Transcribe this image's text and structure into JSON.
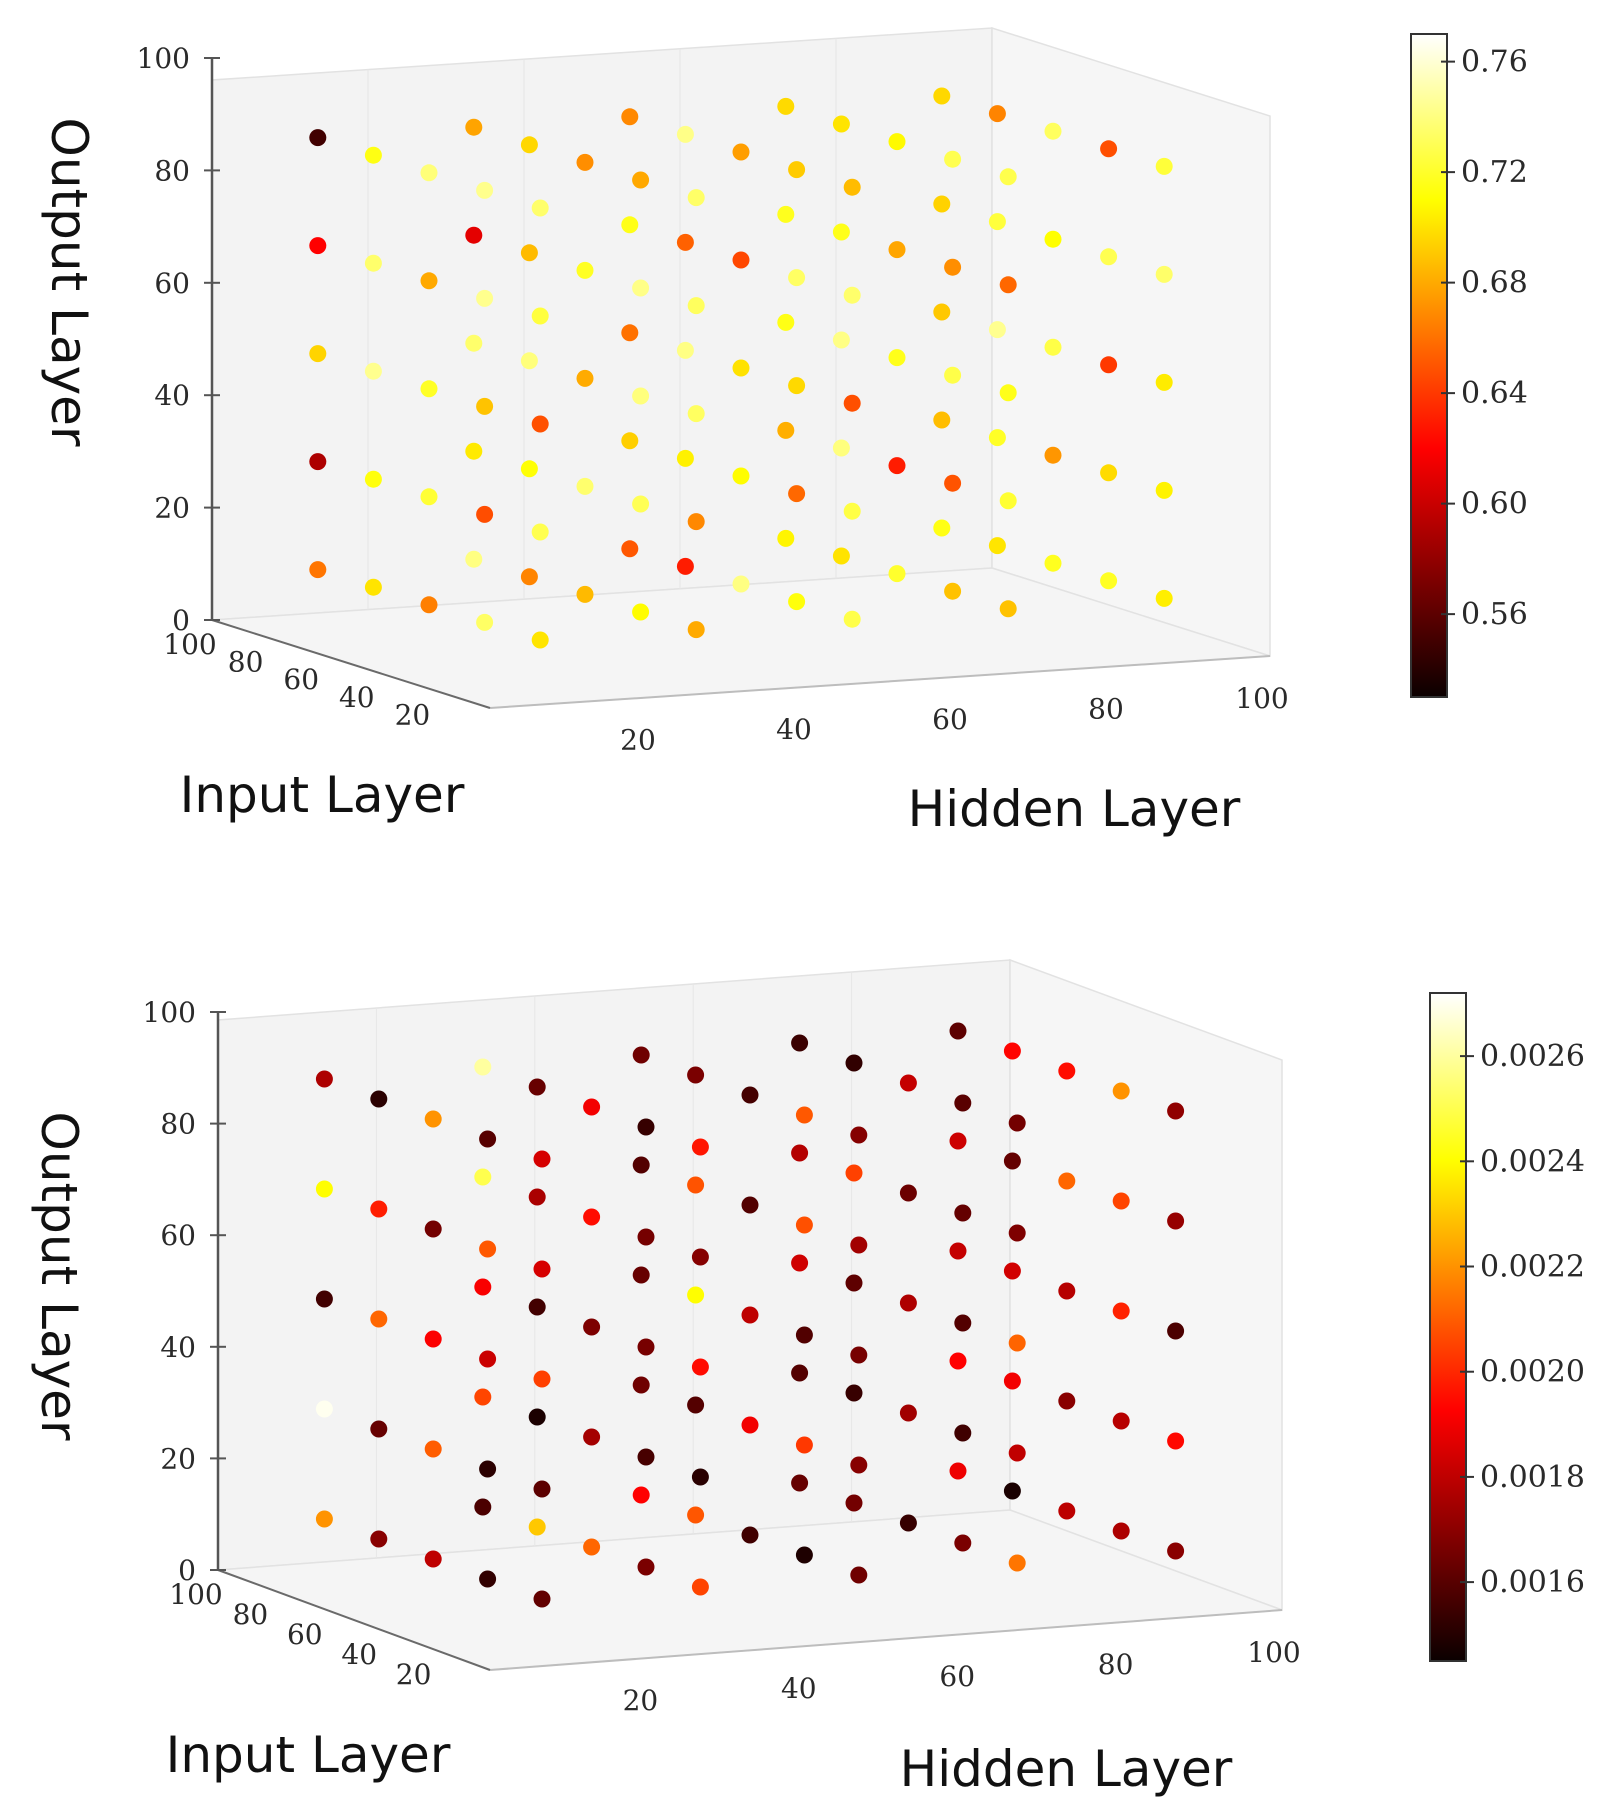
{
  "chart_data": [
    {
      "type": "scatter3d",
      "xlabel": "Hidden Layer",
      "ylabel": "Input Layer",
      "zlabel": "Output Layer",
      "xlim": [
        0,
        100
      ],
      "ylim": [
        0,
        100
      ],
      "zlim": [
        0,
        100
      ],
      "xticks": [
        20,
        40,
        60,
        80,
        100
      ],
      "yticks": [
        20,
        40,
        60,
        80,
        100
      ],
      "zticks": [
        0,
        20,
        40,
        60,
        80,
        100
      ],
      "grid_values": [
        10,
        30,
        50,
        70,
        90
      ],
      "colorbar": {
        "colormap": "hot",
        "min": 0.53,
        "max": 0.77,
        "ticks": [
          "0.56",
          "0.60",
          "0.64",
          "0.68",
          "0.72",
          "0.76"
        ]
      },
      "points": [
        {
          "x": 10,
          "y": 90,
          "z": 90,
          "v": 0.55
        },
        {
          "x": 10,
          "y": 90,
          "z": 70,
          "v": 0.62
        },
        {
          "x": 30,
          "y": 90,
          "z": 70,
          "v": 0.61
        },
        {
          "x": 10,
          "y": 90,
          "z": 30,
          "v": 0.59
        },
        {
          "x": 50,
          "y": 70,
          "z": 10,
          "v": 0.63
        },
        {
          "x": 90,
          "y": 30,
          "z": 50,
          "v": 0.64
        },
        {
          "x": 70,
          "y": 50,
          "z": 30,
          "v": 0.63
        },
        {
          "x": 70,
          "y": 30,
          "z": 70,
          "v": 0.67
        },
        {
          "x": 50,
          "y": 90,
          "z": 50,
          "v": 0.66
        },
        {
          "x": 30,
          "y": 50,
          "z": 90,
          "v": 0.67
        }
      ]
    },
    {
      "type": "scatter3d",
      "xlabel": "Hidden Layer",
      "ylabel": "Input Layer",
      "zlabel": "Output Layer",
      "xlim": [
        0,
        100
      ],
      "ylim": [
        0,
        100
      ],
      "zlim": [
        0,
        100
      ],
      "xticks": [
        20,
        40,
        60,
        80,
        100
      ],
      "yticks": [
        20,
        40,
        60,
        80,
        100
      ],
      "zticks": [
        0,
        20,
        40,
        60,
        80,
        100
      ],
      "grid_values": [
        10,
        30,
        50,
        70,
        90
      ],
      "colorbar": {
        "colormap": "hot",
        "min": 0.00145,
        "max": 0.00272,
        "ticks": [
          "0.0016",
          "0.0018",
          "0.0020",
          "0.0022",
          "0.0024",
          "0.0026"
        ]
      },
      "points": [
        {
          "x": 10,
          "y": 90,
          "z": 70,
          "v": 0.0024
        },
        {
          "x": 10,
          "y": 90,
          "z": 30,
          "v": 0.0027
        },
        {
          "x": 10,
          "y": 90,
          "z": 10,
          "v": 0.0022
        },
        {
          "x": 30,
          "y": 90,
          "z": 90,
          "v": 0.0026
        },
        {
          "x": 30,
          "y": 70,
          "z": 10,
          "v": 0.0023
        },
        {
          "x": 50,
          "y": 70,
          "z": 50,
          "v": 0.0024
        },
        {
          "x": 10,
          "y": 50,
          "z": 90,
          "v": 0.0022
        },
        {
          "x": 90,
          "y": 30,
          "z": 90,
          "v": 0.0022
        },
        {
          "x": 30,
          "y": 90,
          "z": 70,
          "v": 0.0025
        }
      ]
    }
  ]
}
